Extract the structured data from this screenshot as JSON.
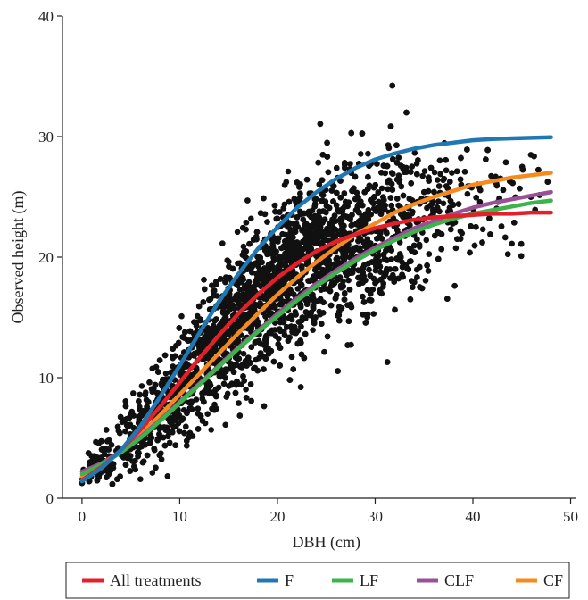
{
  "chart_data": {
    "type": "scatter",
    "xlabel": "DBH (cm)",
    "ylabel": "Observed height (m)",
    "xlim": [
      -2,
      50.5
    ],
    "ylim": [
      0,
      40
    ],
    "xticks": [
      0,
      10,
      20,
      30,
      40,
      50
    ],
    "yticks": [
      0,
      10,
      20,
      30,
      40
    ],
    "grid": false,
    "legend_position": "bottom",
    "scatter": {
      "color": "#111111",
      "description_points": "dense cloud of observed tree heights vs DBH",
      "center_line": [
        [
          0,
          1.8
        ],
        [
          5,
          5.0
        ],
        [
          10,
          9.5
        ],
        [
          15,
          14.0
        ],
        [
          20,
          18.0
        ],
        [
          25,
          20.5
        ],
        [
          30,
          22.0
        ],
        [
          35,
          23.5
        ],
        [
          40,
          24.0
        ],
        [
          45,
          24.5
        ],
        [
          48,
          24.8
        ]
      ],
      "spread_sd": [
        [
          0,
          0.6
        ],
        [
          5,
          1.5
        ],
        [
          10,
          2.4
        ],
        [
          15,
          2.9
        ],
        [
          20,
          3.2
        ],
        [
          25,
          3.3
        ],
        [
          30,
          3.3
        ],
        [
          35,
          3.2
        ],
        [
          40,
          3.0
        ],
        [
          48,
          3.0
        ]
      ],
      "x_density": [
        [
          0,
          0.15
        ],
        [
          5,
          0.35
        ],
        [
          10,
          0.6
        ],
        [
          15,
          0.85
        ],
        [
          20,
          1.0
        ],
        [
          25,
          0.95
        ],
        [
          30,
          0.6
        ],
        [
          35,
          0.3
        ],
        [
          40,
          0.12
        ],
        [
          45,
          0.04
        ],
        [
          48,
          0.02
        ]
      ]
    },
    "series": [
      {
        "name": "All treatments",
        "color": "#e3202a",
        "x": [
          0,
          2,
          4,
          6,
          8,
          10,
          12,
          14,
          16,
          18,
          20,
          22,
          24,
          26,
          28,
          30,
          32,
          34,
          36,
          38,
          40,
          42,
          44,
          46,
          48
        ],
        "y": [
          1.5,
          2.6,
          4.0,
          5.7,
          7.6,
          9.6,
          11.6,
          13.5,
          15.3,
          16.9,
          18.3,
          19.5,
          20.5,
          21.3,
          21.9,
          22.4,
          22.8,
          23.1,
          23.3,
          23.4,
          23.5,
          23.6,
          23.6,
          23.7,
          23.7
        ]
      },
      {
        "name": "F",
        "color": "#1f78b4",
        "x": [
          0,
          2,
          4,
          6,
          8,
          10,
          12,
          14,
          16,
          18,
          20,
          22,
          24,
          26,
          28,
          30,
          32,
          34,
          36,
          38,
          40,
          42,
          44,
          46,
          48
        ],
        "y": [
          1.4,
          2.5,
          4.0,
          6.0,
          8.4,
          11.0,
          13.7,
          16.3,
          18.6,
          20.7,
          22.5,
          24.1,
          25.4,
          26.5,
          27.4,
          28.1,
          28.6,
          29.0,
          29.3,
          29.5,
          29.7,
          29.8,
          29.85,
          29.9,
          29.95
        ]
      },
      {
        "name": "LF",
        "color": "#3cb44b",
        "x": [
          0,
          2,
          4,
          6,
          8,
          10,
          12,
          14,
          16,
          18,
          20,
          22,
          24,
          26,
          28,
          30,
          32,
          34,
          36,
          38,
          40,
          42,
          44,
          46,
          48
        ],
        "y": [
          2.0,
          2.8,
          3.8,
          5.0,
          6.4,
          7.9,
          9.4,
          10.9,
          12.4,
          13.8,
          15.1,
          16.4,
          17.6,
          18.7,
          19.7,
          20.6,
          21.4,
          22.1,
          22.7,
          23.2,
          23.6,
          23.9,
          24.2,
          24.5,
          24.7
        ]
      },
      {
        "name": "CLF",
        "color": "#9b4f96",
        "x": [
          0,
          2,
          4,
          6,
          8,
          10,
          12,
          14,
          16,
          18,
          20,
          22,
          24,
          26,
          28,
          30,
          32,
          34,
          36,
          38,
          40,
          42,
          44,
          46,
          48
        ],
        "y": [
          2.2,
          2.9,
          3.9,
          5.1,
          6.5,
          8.0,
          9.5,
          11.0,
          12.5,
          13.9,
          15.3,
          16.6,
          17.8,
          18.9,
          19.9,
          20.8,
          21.6,
          22.4,
          23.0,
          23.6,
          24.1,
          24.5,
          24.8,
          25.1,
          25.4
        ]
      },
      {
        "name": "CF",
        "color": "#f58a1f",
        "x": [
          0,
          2,
          4,
          6,
          8,
          10,
          12,
          14,
          16,
          18,
          20,
          22,
          24,
          26,
          28,
          30,
          32,
          34,
          36,
          38,
          40,
          42,
          44,
          46,
          48
        ],
        "y": [
          1.8,
          2.7,
          3.9,
          5.3,
          6.9,
          8.6,
          10.3,
          12.0,
          13.7,
          15.3,
          16.9,
          18.3,
          19.6,
          20.8,
          21.9,
          22.8,
          23.7,
          24.4,
          25.0,
          25.5,
          26.0,
          26.3,
          26.6,
          26.8,
          27.0
        ]
      }
    ]
  },
  "legend": {
    "items": [
      {
        "label": "All treatments",
        "color": "#e3202a"
      },
      {
        "label": "F",
        "color": "#1f78b4"
      },
      {
        "label": "LF",
        "color": "#3cb44b"
      },
      {
        "label": "CLF",
        "color": "#9b4f96"
      },
      {
        "label": "CF",
        "color": "#f58a1f"
      }
    ]
  }
}
